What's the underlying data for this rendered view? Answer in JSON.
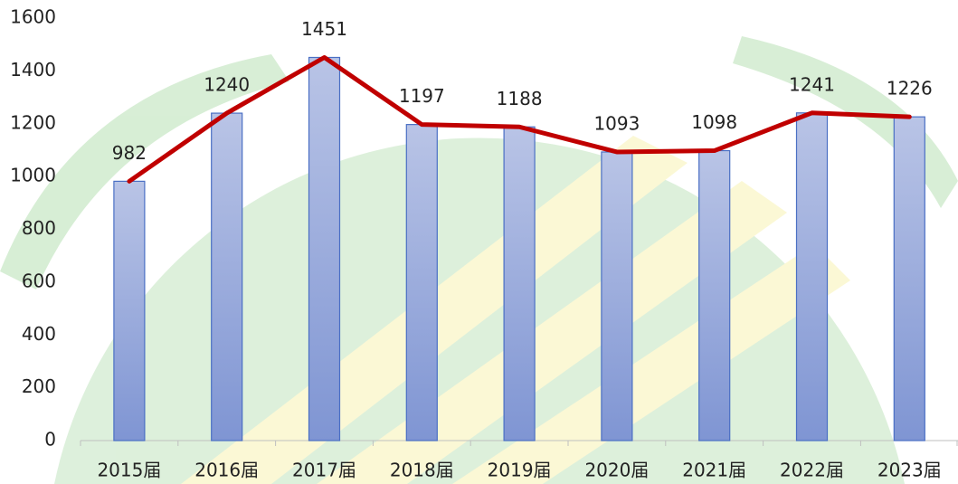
{
  "chart_data": {
    "type": "bar",
    "categories": [
      "2015届",
      "2016届",
      "2017届",
      "2018届",
      "2019届",
      "2020届",
      "2021届",
      "2022届",
      "2023届"
    ],
    "values": [
      982,
      1240,
      1451,
      1197,
      1188,
      1093,
      1098,
      1241,
      1226
    ],
    "color": "#8fa3d9",
    "line_color": "#c00000",
    "line_overlay": true,
    "data_labels": true,
    "ylim": [
      0,
      1600
    ],
    "yticks": [
      0,
      200,
      400,
      600,
      800,
      1000,
      1200,
      1400,
      1600
    ]
  }
}
